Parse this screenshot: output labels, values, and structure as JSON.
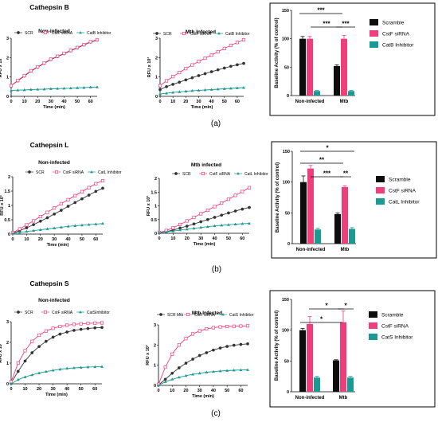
{
  "panels": [
    {
      "panel_label": "(a)",
      "section_title": "Cathepsin B",
      "line_charts": [
        {
          "subtitle": "Non-infected",
          "legend": [
            "SCR",
            "CstF siRNA",
            "CatB Inhibitor"
          ]
        },
        {
          "subtitle": "Mtb Infected",
          "legend": [
            "SCR",
            "CstF siRNA",
            "CatB Inhibitor"
          ]
        }
      ],
      "bar_chart": {
        "legend": [
          "Scramble",
          "CstF siRNA",
          "CatB Inhibitor"
        ],
        "significance": [
          "***",
          "***",
          "***"
        ]
      }
    },
    {
      "panel_label": "(b)",
      "section_title": "Cathepsin L",
      "line_charts": [
        {
          "subtitle": "Non-infected",
          "legend": [
            "SCR",
            "CstF siRNA",
            "CatL Inhibitor"
          ]
        },
        {
          "subtitle": "Mtb infected",
          "legend": [
            "SCR",
            "CstF siRNA",
            "CatL Inhibitor"
          ]
        }
      ],
      "bar_chart": {
        "legend": [
          "Scramble",
          "CstF siRNA",
          "CatL Inhibitor"
        ],
        "significance": [
          "*",
          "**",
          "***",
          "**"
        ]
      }
    },
    {
      "panel_label": "(c)",
      "section_title": "Cathepsin S",
      "line_charts": [
        {
          "subtitle": "Non-infected",
          "legend": [
            "SCR",
            "CstF siRNA",
            "CatSInhibitor"
          ]
        },
        {
          "subtitle": "Mtb Infected",
          "legend": [
            "SCR Mtb",
            "CstF siRNA",
            "CatS Inhibitor"
          ]
        }
      ],
      "bar_chart": {
        "legend": [
          "Scramble",
          "CstF siRNA",
          "CatS Inhibitor"
        ],
        "significance": [
          "*",
          "*",
          "*"
        ]
      }
    }
  ],
  "colors": {
    "scr": "#333333",
    "cstf": "#ef3f7a",
    "inhibitor": "#1a9a93"
  },
  "chart_data": [
    {
      "type": "line",
      "subtitle": "Non-infected",
      "xlabel": "Time (min)",
      "ylabel": "RFU x 10³",
      "yticks": [
        "0",
        "1",
        "2",
        "3"
      ],
      "xticks": [
        "0",
        "10",
        "20",
        "30",
        "40",
        "50",
        "60"
      ],
      "xlim": [
        0,
        65
      ],
      "ylim": [
        0,
        3
      ],
      "series": [
        {
          "name": "SCR",
          "color": "#333333",
          "marker": "filled-circle",
          "x": [
            0,
            5,
            10,
            15,
            20,
            25,
            30,
            35,
            40,
            45,
            50,
            55,
            60,
            65
          ],
          "y": [
            0.55,
            0.8,
            1.05,
            1.3,
            1.5,
            1.7,
            1.9,
            2.05,
            2.2,
            2.35,
            2.5,
            2.65,
            2.8,
            2.9
          ]
        },
        {
          "name": "CstF siRNA",
          "color": "#ef3f7a",
          "marker": "open-square",
          "x": [
            0,
            5,
            10,
            15,
            20,
            25,
            30,
            35,
            40,
            45,
            50,
            55,
            60,
            65
          ],
          "y": [
            0.55,
            0.82,
            1.07,
            1.32,
            1.52,
            1.72,
            1.92,
            2.07,
            2.22,
            2.37,
            2.52,
            2.67,
            2.82,
            2.92
          ]
        },
        {
          "name": "CatB Inhibitor",
          "color": "#1a9a93",
          "marker": "triangle",
          "x": [
            0,
            5,
            10,
            15,
            20,
            25,
            30,
            35,
            40,
            45,
            50,
            55,
            60,
            65
          ],
          "y": [
            0.3,
            0.32,
            0.33,
            0.35,
            0.36,
            0.37,
            0.39,
            0.4,
            0.41,
            0.42,
            0.44,
            0.45,
            0.47,
            0.48
          ]
        }
      ]
    },
    {
      "type": "line",
      "subtitle": "Mtb Infected",
      "xlabel": "Time (min)",
      "ylabel": "RFU x 10³",
      "yticks": [
        "0",
        "1",
        "2",
        "3"
      ],
      "xticks": [
        "0",
        "10",
        "20",
        "30",
        "40",
        "50",
        "60"
      ],
      "xlim": [
        0,
        65
      ],
      "ylim": [
        0,
        3
      ],
      "series": [
        {
          "name": "SCR",
          "color": "#333333",
          "marker": "filled-circle",
          "x": [
            0,
            5,
            10,
            15,
            20,
            25,
            30,
            35,
            40,
            45,
            50,
            55,
            60,
            65
          ],
          "y": [
            0.35,
            0.5,
            0.62,
            0.73,
            0.85,
            0.96,
            1.07,
            1.17,
            1.27,
            1.37,
            1.46,
            1.55,
            1.63,
            1.7
          ]
        },
        {
          "name": "CstF siRNA",
          "color": "#ef3f7a",
          "marker": "open-square",
          "x": [
            0,
            5,
            10,
            15,
            20,
            25,
            30,
            35,
            40,
            45,
            50,
            55,
            60,
            65
          ],
          "y": [
            0.55,
            0.8,
            1.02,
            1.23,
            1.43,
            1.62,
            1.8,
            1.97,
            2.13,
            2.3,
            2.47,
            2.63,
            2.78,
            2.92
          ]
        },
        {
          "name": "CatB Inhibitor",
          "color": "#1a9a93",
          "marker": "triangle",
          "x": [
            0,
            5,
            10,
            15,
            20,
            25,
            30,
            35,
            40,
            45,
            50,
            55,
            60,
            65
          ],
          "y": [
            0.12,
            0.16,
            0.2,
            0.23,
            0.26,
            0.29,
            0.31,
            0.33,
            0.35,
            0.37,
            0.39,
            0.41,
            0.43,
            0.45
          ]
        }
      ]
    },
    {
      "type": "bar",
      "xlabel": "",
      "ylabel": "Baseline Activity (% of control)",
      "yticks": [
        "0",
        "50",
        "100",
        "150"
      ],
      "ylim": [
        0,
        150
      ],
      "categories": [
        "Non-infected",
        "Mtb"
      ],
      "series": [
        {
          "name": "Scramble",
          "color": "#0d0d0d",
          "values": [
            100,
            52
          ],
          "errors": [
            4,
            2
          ]
        },
        {
          "name": "CstF siRNA",
          "color": "#ef3f7a",
          "values": [
            100,
            100
          ],
          "errors": [
            4,
            6
          ]
        },
        {
          "name": "CatB Inhibitor",
          "color": "#1a9a93",
          "values": [
            8,
            8
          ],
          "errors": [
            1,
            1
          ]
        }
      ]
    },
    {
      "type": "line",
      "subtitle": "Non-infected",
      "xlabel": "Time (min)",
      "ylabel": "RFU x 10³",
      "yticks": [
        "0",
        "0.5",
        "1",
        "1.5",
        "2"
      ],
      "xticks": [
        "0",
        "10",
        "20",
        "30",
        "40",
        "50",
        "60"
      ],
      "xlim": [
        0,
        65
      ],
      "ylim": [
        0,
        2
      ],
      "series": [
        {
          "name": "SCR",
          "color": "#333333",
          "marker": "filled-circle",
          "x": [
            0,
            5,
            10,
            15,
            20,
            25,
            30,
            35,
            40,
            45,
            50,
            55,
            60,
            65
          ],
          "y": [
            0.03,
            0.12,
            0.22,
            0.33,
            0.45,
            0.57,
            0.7,
            0.83,
            0.97,
            1.1,
            1.23,
            1.36,
            1.49,
            1.6
          ]
        },
        {
          "name": "CstF siRNA",
          "color": "#ef3f7a",
          "marker": "open-square",
          "x": [
            0,
            5,
            10,
            15,
            20,
            25,
            30,
            35,
            40,
            45,
            50,
            55,
            60,
            65
          ],
          "y": [
            0.05,
            0.18,
            0.32,
            0.46,
            0.61,
            0.76,
            0.91,
            1.06,
            1.2,
            1.34,
            1.48,
            1.62,
            1.76,
            1.86
          ]
        },
        {
          "name": "CatL Inhibitor",
          "color": "#1a9a93",
          "marker": "triangle",
          "x": [
            0,
            5,
            10,
            15,
            20,
            25,
            30,
            35,
            40,
            45,
            50,
            55,
            60,
            65
          ],
          "y": [
            0.02,
            0.06,
            0.09,
            0.12,
            0.15,
            0.18,
            0.21,
            0.24,
            0.27,
            0.29,
            0.31,
            0.33,
            0.35,
            0.37
          ]
        }
      ]
    },
    {
      "type": "line",
      "subtitle": "Mtb infected",
      "xlabel": "Time (min)",
      "ylabel": "RFU x 10³",
      "yticks": [
        "0",
        "0.5",
        "1",
        "1.5",
        "2"
      ],
      "xticks": [
        "0",
        "10",
        "20",
        "30",
        "40",
        "50",
        "60"
      ],
      "xlim": [
        0,
        65
      ],
      "ylim": [
        0,
        2
      ],
      "series": [
        {
          "name": "SCR",
          "color": "#333333",
          "marker": "filled-circle",
          "x": [
            0,
            5,
            10,
            15,
            20,
            25,
            30,
            35,
            40,
            45,
            50,
            55,
            60,
            65
          ],
          "y": [
            0.02,
            0.06,
            0.12,
            0.19,
            0.26,
            0.34,
            0.42,
            0.5,
            0.58,
            0.66,
            0.74,
            0.81,
            0.88,
            0.94
          ]
        },
        {
          "name": "CstF siRNA",
          "color": "#ef3f7a",
          "marker": "open-square",
          "x": [
            0,
            5,
            10,
            15,
            20,
            25,
            30,
            35,
            40,
            45,
            50,
            55,
            60,
            65
          ],
          "y": [
            0.03,
            0.1,
            0.2,
            0.32,
            0.45,
            0.58,
            0.71,
            0.84,
            0.97,
            1.1,
            1.24,
            1.38,
            1.52,
            1.66
          ]
        },
        {
          "name": "CatL Inhibitor",
          "color": "#1a9a93",
          "marker": "triangle",
          "x": [
            0,
            5,
            10,
            15,
            20,
            25,
            30,
            35,
            40,
            45,
            50,
            55,
            60,
            65
          ],
          "y": [
            0.02,
            0.05,
            0.08,
            0.12,
            0.15,
            0.18,
            0.21,
            0.24,
            0.27,
            0.29,
            0.31,
            0.33,
            0.35,
            0.36
          ]
        }
      ]
    },
    {
      "type": "bar",
      "xlabel": "",
      "ylabel": "Baseline Activity (% of control)",
      "yticks": [
        "0",
        "50",
        "100",
        "150"
      ],
      "ylim": [
        0,
        150
      ],
      "categories": [
        "Non-infected",
        "Mtb"
      ],
      "series": [
        {
          "name": "Scramble",
          "color": "#0d0d0d",
          "values": [
            100,
            48
          ],
          "errors": [
            10,
            2
          ]
        },
        {
          "name": "CstF siRNA",
          "color": "#ef3f7a",
          "values": [
            122,
            92
          ],
          "errors": [
            5,
            2
          ]
        },
        {
          "name": "CatL Inhibitor",
          "color": "#1a9a93",
          "values": [
            23,
            24
          ],
          "errors": [
            2,
            2
          ]
        }
      ]
    },
    {
      "type": "line",
      "subtitle": "Non-infected",
      "xlabel": "Time (min)",
      "ylabel": "RFU x 10³",
      "yticks": [
        "0",
        "1",
        "2",
        "3"
      ],
      "xticks": [
        "0",
        "10",
        "20",
        "30",
        "40",
        "50",
        "60"
      ],
      "xlim": [
        0,
        65
      ],
      "ylim": [
        0,
        3
      ],
      "series": [
        {
          "name": "SCR",
          "color": "#333333",
          "marker": "filled-circle",
          "x": [
            0,
            5,
            10,
            15,
            20,
            25,
            30,
            35,
            40,
            45,
            50,
            55,
            60,
            65
          ],
          "y": [
            0.05,
            0.6,
            1.1,
            1.5,
            1.8,
            2.05,
            2.25,
            2.4,
            2.5,
            2.58,
            2.63,
            2.67,
            2.7,
            2.72
          ]
        },
        {
          "name": "CstF siRNA",
          "color": "#ef3f7a",
          "marker": "open-square",
          "x": [
            0,
            5,
            10,
            15,
            20,
            25,
            30,
            35,
            40,
            45,
            50,
            55,
            60,
            65
          ],
          "y": [
            0.1,
            1.0,
            1.6,
            2.05,
            2.35,
            2.55,
            2.68,
            2.77,
            2.83,
            2.87,
            2.9,
            2.92,
            2.93,
            2.94
          ]
        },
        {
          "name": "CatSInhibitor",
          "color": "#1a9a93",
          "marker": "triangle",
          "x": [
            0,
            5,
            10,
            15,
            20,
            25,
            30,
            35,
            40,
            45,
            50,
            55,
            60,
            65
          ],
          "y": [
            0.0,
            0.2,
            0.33,
            0.43,
            0.52,
            0.59,
            0.65,
            0.7,
            0.74,
            0.77,
            0.79,
            0.81,
            0.82,
            0.83
          ]
        }
      ]
    },
    {
      "type": "line",
      "subtitle": "Mtb Infected",
      "xlabel": "Time (min)",
      "ylabel": "RFU x 10³",
      "yticks": [
        "0",
        "1",
        "2",
        "3"
      ],
      "xticks": [
        "0",
        "10",
        "20",
        "30",
        "40",
        "50",
        "60"
      ],
      "xlim": [
        0,
        65
      ],
      "ylim": [
        0,
        3
      ],
      "series": [
        {
          "name": "SCR Mtb",
          "color": "#333333",
          "marker": "filled-circle",
          "x": [
            0,
            5,
            10,
            15,
            20,
            25,
            30,
            35,
            40,
            45,
            50,
            55,
            60,
            65
          ],
          "y": [
            0.02,
            0.3,
            0.6,
            0.87,
            1.1,
            1.3,
            1.48,
            1.62,
            1.75,
            1.85,
            1.93,
            1.99,
            2.03,
            2.06
          ]
        },
        {
          "name": "CstF siRNA",
          "color": "#ef3f7a",
          "marker": "open-square",
          "x": [
            0,
            5,
            10,
            15,
            20,
            25,
            30,
            35,
            40,
            45,
            50,
            55,
            60,
            65
          ],
          "y": [
            0.05,
            0.9,
            1.55,
            2.0,
            2.32,
            2.55,
            2.7,
            2.8,
            2.86,
            2.9,
            2.92,
            2.93,
            2.94,
            2.95
          ]
        },
        {
          "name": "CatS Inhibitor",
          "color": "#1a9a93",
          "marker": "triangle",
          "x": [
            0,
            5,
            10,
            15,
            20,
            25,
            30,
            35,
            40,
            45,
            50,
            55,
            60,
            65
          ],
          "y": [
            0.0,
            0.18,
            0.3,
            0.4,
            0.48,
            0.55,
            0.6,
            0.65,
            0.68,
            0.71,
            0.73,
            0.75,
            0.76,
            0.77
          ]
        }
      ]
    },
    {
      "type": "bar",
      "xlabel": "",
      "ylabel": "Baseline Activity (% of control)",
      "yticks": [
        "0",
        "50",
        "100",
        "150"
      ],
      "ylim": [
        0,
        150
      ],
      "categories": [
        "Non-infected",
        "Mtb"
      ],
      "series": [
        {
          "name": "Scramble",
          "color": "#0d0d0d",
          "values": [
            100,
            51
          ],
          "errors": [
            3,
            1
          ]
        },
        {
          "name": "CstF siRNA",
          "color": "#ef3f7a",
          "values": [
            110,
            113
          ],
          "errors": [
            12,
            18
          ]
        },
        {
          "name": "CatS Inhibitor",
          "color": "#1a9a93",
          "values": [
            23,
            23
          ],
          "errors": [
            2,
            2
          ]
        }
      ]
    }
  ]
}
